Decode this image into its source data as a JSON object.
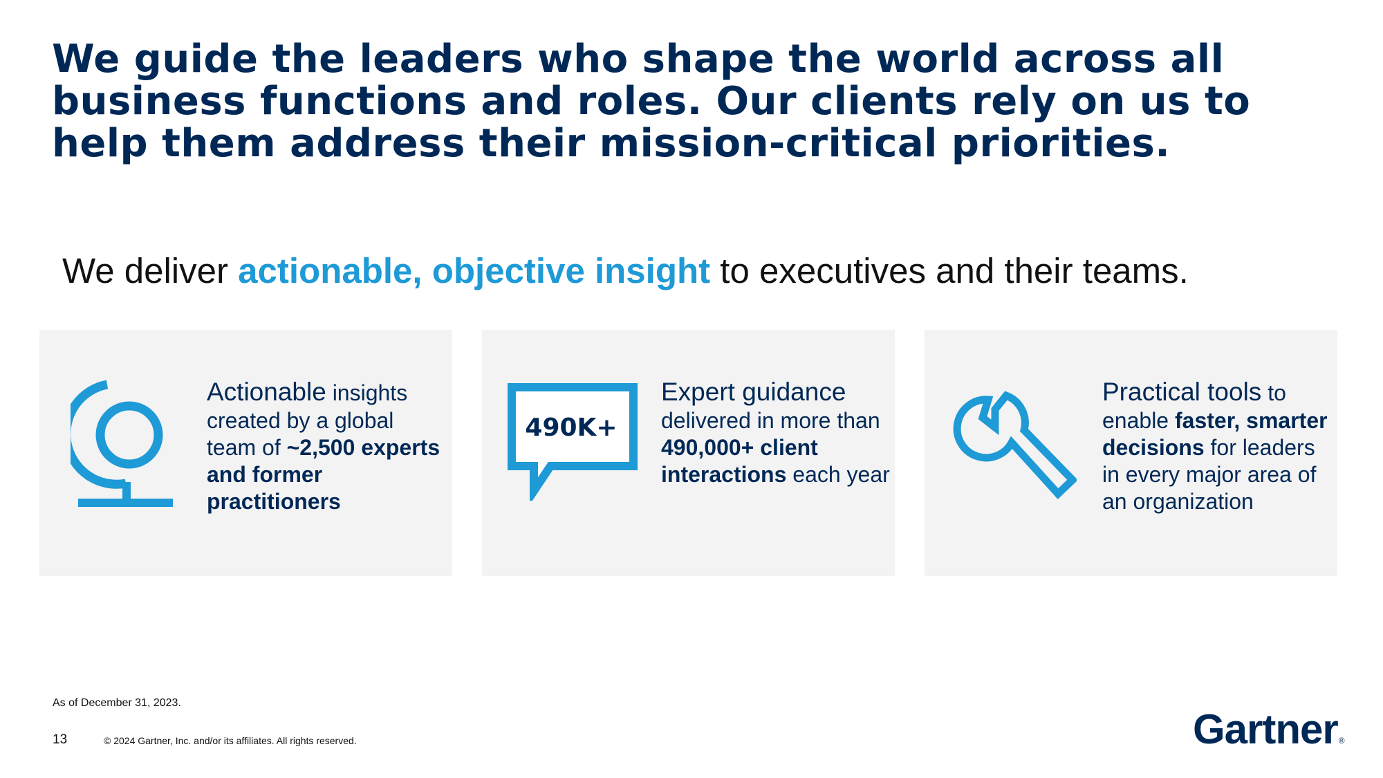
{
  "headline": {
    "line1": "We guide the leaders who shape the world across all",
    "line2": "business functions and roles. Our clients rely on us to",
    "line3": "help them address their mission-critical priorities."
  },
  "subhead": {
    "pre": "We deliver ",
    "accent": "actionable, objective insight",
    "post": " to executives and their teams."
  },
  "cards": [
    {
      "icon": "globe-icon",
      "lead_a": "Actionable",
      "lead_b": " insights",
      "text_a": "created by a global team of ",
      "bold_a": "~2,500 experts and former practitioners"
    },
    {
      "icon": "speech-bubble-icon",
      "icon_label": "490K+",
      "lead_a": "Expert guidance",
      "text_a": "delivered in more than ",
      "bold_a": "490,000+ client interactions",
      "text_b": " each year"
    },
    {
      "icon": "wrench-icon",
      "lead_a": "Practical tools",
      "lead_b": " to",
      "text_a": "enable ",
      "bold_a": "faster, smarter decisions",
      "text_b": " for leaders in every major area of an organization"
    }
  ],
  "footer": {
    "note": "As of December 31, 2023.",
    "page_number": "13",
    "copyright": "© 2024 Gartner, Inc. and/or its affiliates. All rights reserved.",
    "logo": "Gartner",
    "logo_mark": "®"
  },
  "colors": {
    "navy": "#002856",
    "accent_blue": "#1e9ad6",
    "card_bg": "#f3f3f3"
  }
}
